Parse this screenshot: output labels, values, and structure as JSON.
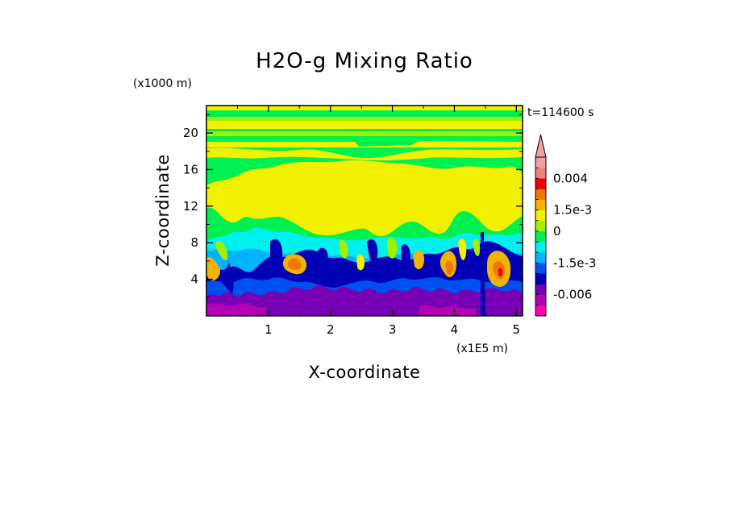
{
  "chart_data": {
    "type": "heatmap",
    "title": "H2O-g Mixing Ratio",
    "xlabel": "X-coordinate",
    "ylabel": "Z-coordinate",
    "x_unit": "(x1E5 m)",
    "y_unit": "(x1000 m)",
    "time_label": "t=114600 s",
    "xlim": [
      0,
      5.1
    ],
    "ylim": [
      0,
      23
    ],
    "x_ticks": [
      1,
      2,
      3,
      4,
      5
    ],
    "x_tick_labels": [
      "1",
      "2",
      "3",
      "4",
      "5"
    ],
    "y_ticks": [
      4,
      8,
      12,
      16,
      20
    ],
    "y_tick_labels": [
      "4",
      "8",
      "12",
      "16",
      "20"
    ],
    "colorbar": {
      "colors_bottom_to_top": [
        "#ff00b4",
        "#b400b4",
        "#7800b4",
        "#0000b4",
        "#0050f0",
        "#00b4ff",
        "#00f0f0",
        "#00f050",
        "#a0f000",
        "#f0f000",
        "#f0b400",
        "#f07800",
        "#f00000",
        "#f08080",
        "#f0a0a0"
      ],
      "labels": [
        "0.004",
        "1.5e-3",
        "0",
        "-1.5e-3",
        "-0.006"
      ],
      "label_levels": [
        13,
        10,
        8,
        5,
        2
      ]
    },
    "layers_top_to_bottom": [
      {
        "z_range": [
          20,
          23
        ],
        "dominant": "alternating yellow and green bands"
      },
      {
        "z_range": [
          17,
          20
        ],
        "dominant": "yellow"
      },
      {
        "z_range": [
          9,
          17
        ],
        "dominant": "yellow with green borders"
      },
      {
        "z_range": [
          6,
          9
        ],
        "dominant": "cyan"
      },
      {
        "z_range": [
          2,
          6
        ],
        "dominant": "blue with orange/yellow plumes"
      },
      {
        "z_range": [
          0,
          2
        ],
        "dominant": "purple"
      }
    ]
  }
}
